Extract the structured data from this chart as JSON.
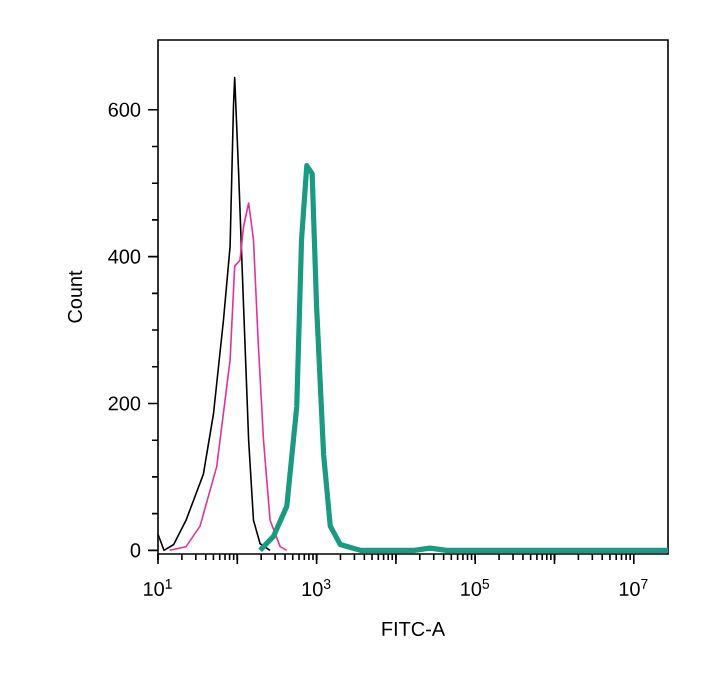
{
  "chart_data": {
    "type": "line",
    "xlabel": "FITC-A",
    "ylabel": "Count",
    "log": "x",
    "xlim": [
      10,
      27000000
    ],
    "ylim": [
      -5,
      695
    ],
    "xticks": [
      {
        "value": 10,
        "label": "10$^{1}$"
      },
      {
        "value": 100,
        "label": null
      },
      {
        "value": 1000,
        "label": "10$^{3}$"
      },
      {
        "value": 10000,
        "label": null
      },
      {
        "value": 100000,
        "label": "10$^{5}$"
      },
      {
        "value": 1000000,
        "label": null
      },
      {
        "value": 10000000,
        "label": "10$^{7}$"
      }
    ],
    "yticks": [
      0,
      200,
      400,
      600
    ],
    "series": [
      {
        "color": "#000000",
        "x": [
          10,
          11.9,
          15.8,
          22.6,
          37.4,
          50.1,
          67,
          81.1,
          89.5,
          92.7,
          104,
          120,
          139,
          160,
          194,
          259
        ],
        "values": [
          22,
          0,
          8,
          41,
          104,
          186,
          314,
          414,
          605,
          644,
          513,
          332,
          150,
          41,
          9,
          0
        ]
      },
      {
        "color": "#e0329a",
        "x": [
          14,
          22.6,
          33.9,
          55,
          81.1,
          92.7,
          108,
          120,
          139,
          160,
          183,
          214,
          259,
          347,
          421
        ],
        "values": [
          0,
          5,
          33,
          114,
          259,
          387,
          395,
          441,
          473,
          423,
          286,
          150,
          41,
          5,
          0
        ]
      },
      {
        "color": "#1a9a80",
        "x": [
          194,
          286,
          421,
          562,
          646,
          752,
          879,
          1000,
          1225,
          1486,
          1986,
          3548,
          17000,
          26900,
          43600,
          27000000
        ],
        "values": [
          0,
          19,
          60,
          196,
          423,
          524,
          513,
          332,
          131,
          33,
          8,
          0,
          0,
          3,
          0,
          0
        ]
      }
    ]
  }
}
